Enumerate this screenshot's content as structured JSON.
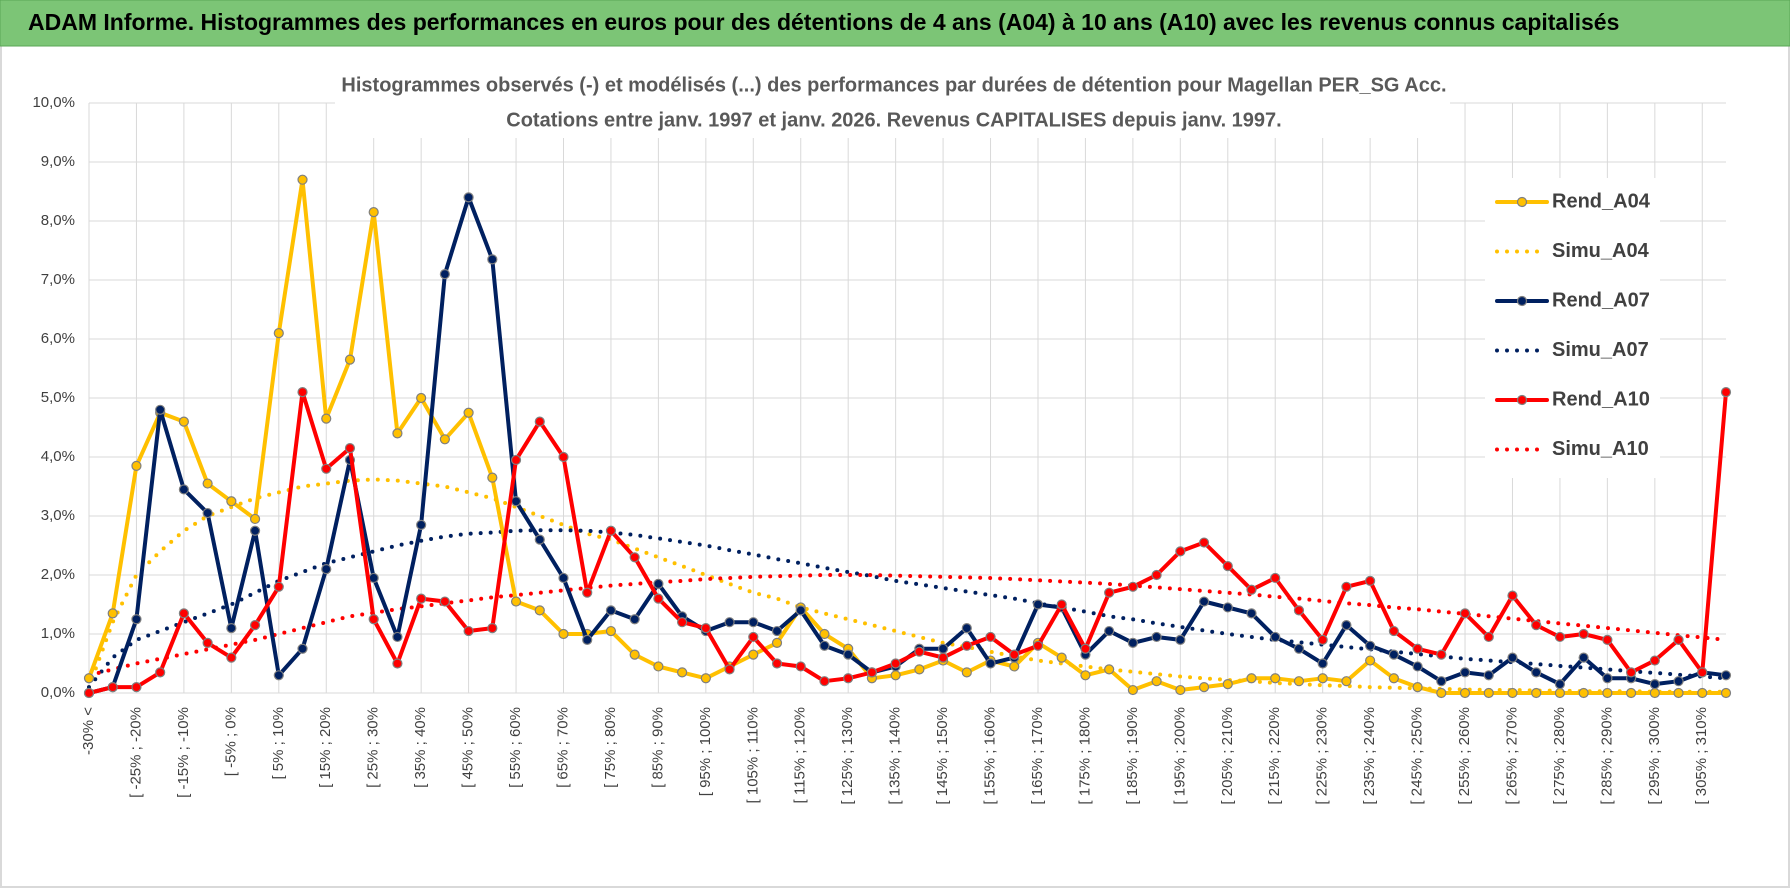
{
  "header": {
    "title": "ADAM Informe. Histogrammes des performances en euros pour des détentions de 4 ans (A04) à 10 ans (A10) avec les revenus connus capitalisés"
  },
  "chart_data": {
    "type": "line",
    "title": [
      "Histogrammes observés (-) et modélisés (...) des performances par durées de détention pour Magellan PER_SG Acc.",
      "Cotations entre janv. 1997 et janv. 2026. Revenus CAPITALISES depuis janv. 1997."
    ],
    "categories": [
      "-30% <",
      null,
      "[ -25% ; -20%",
      null,
      "[ -15% ; -10%",
      null,
      "[ -5% ; 0%",
      null,
      "[ 5% ; 10%",
      null,
      "[ 15% ; 20%",
      null,
      "[ 25% ; 30%",
      null,
      "[ 35% ; 40%",
      null,
      "[ 45% ; 50%",
      null,
      "[ 55% ; 60%",
      null,
      "[ 65% ; 70%",
      null,
      "[ 75% ; 80%",
      null,
      "[ 85% ; 90%",
      null,
      "[ 95% ; 100%",
      null,
      "[ 105% ; 110%",
      null,
      "[ 115% ; 120%",
      null,
      "[ 125% ; 130%",
      null,
      "[ 135% ; 140%",
      null,
      "[ 145% ; 150%",
      null,
      "[ 155% ; 160%",
      null,
      "[ 165% ; 170%",
      null,
      "[ 175% ; 180%",
      null,
      "[ 185% ; 190%",
      null,
      "[ 195% ; 200%",
      null,
      "[ 205% ; 210%",
      null,
      "[ 215% ; 220%",
      null,
      "[ 225% ; 230%",
      null,
      "[ 235% ; 240%",
      null,
      "[ 245% ; 250%",
      null,
      "[ 255% ; 260%",
      null,
      "[ 265% ; 270%",
      null,
      "[ 275% ; 280%",
      null,
      "[ 285% ; 290%",
      null,
      "[ 295% ; 300%",
      null,
      "[ 305% ; 310%",
      null
    ],
    "series": [
      {
        "name": "Rend_A04",
        "color": "#ffc000",
        "line_style": "solid",
        "values": [
          0.25,
          1.35,
          3.85,
          4.75,
          4.6,
          3.55,
          3.25,
          2.95,
          6.1,
          8.7,
          4.65,
          5.65,
          8.15,
          4.4,
          5.0,
          4.3,
          4.75,
          3.65,
          1.55,
          1.4,
          1.0,
          1.0,
          1.05,
          0.65,
          0.45,
          0.35,
          0.25,
          0.45,
          0.65,
          0.85,
          1.45,
          1.0,
          0.75,
          0.25,
          0.3,
          0.4,
          0.55,
          0.35,
          0.55,
          0.45,
          0.85,
          0.6,
          0.3,
          0.4,
          0.05,
          0.2,
          0.05,
          0.1,
          0.15,
          0.25,
          0.25,
          0.2,
          0.25,
          0.2,
          0.55,
          0.25,
          0.1,
          0,
          0,
          0,
          0,
          0,
          0,
          0,
          0,
          0,
          0,
          0,
          0,
          0
        ]
      },
      {
        "name": "Simu_A04",
        "color": "#ffc000",
        "line_style": "dotted",
        "values": [
          0.1,
          1.2,
          2.0,
          2.4,
          2.75,
          3.0,
          3.15,
          3.3,
          3.4,
          3.5,
          3.55,
          3.6,
          3.62,
          3.6,
          3.55,
          3.5,
          3.4,
          3.3,
          3.15,
          3.0,
          2.85,
          2.7,
          2.6,
          2.45,
          2.3,
          2.15,
          2.0,
          1.85,
          1.7,
          1.6,
          1.45,
          1.35,
          1.25,
          1.15,
          1.05,
          0.95,
          0.85,
          0.78,
          0.7,
          0.62,
          0.55,
          0.5,
          0.45,
          0.4,
          0.36,
          0.32,
          0.28,
          0.25,
          0.22,
          0.2,
          0.17,
          0.15,
          0.13,
          0.12,
          0.1,
          0.09,
          0.08,
          0.07,
          0.06,
          0.05,
          0.05,
          0.04,
          0.04,
          0.03,
          0.03,
          0.03,
          0.02,
          0.02,
          0.02,
          0.02
        ]
      },
      {
        "name": "Rend_A07",
        "color": "#002060",
        "line_style": "solid",
        "values": [
          0,
          0.1,
          1.25,
          4.8,
          3.45,
          3.05,
          1.1,
          2.75,
          0.3,
          0.75,
          2.1,
          3.95,
          1.95,
          0.95,
          2.85,
          7.1,
          8.4,
          7.35,
          3.25,
          2.6,
          1.95,
          0.9,
          1.4,
          1.25,
          1.85,
          1.3,
          1.05,
          1.2,
          1.2,
          1.05,
          1.4,
          0.8,
          0.65,
          0.35,
          0.45,
          0.75,
          0.75,
          1.1,
          0.5,
          0.6,
          1.5,
          1.45,
          0.65,
          1.05,
          0.85,
          0.95,
          0.9,
          1.55,
          1.45,
          1.35,
          0.95,
          0.75,
          0.5,
          1.15,
          0.8,
          0.65,
          0.45,
          0.2,
          0.35,
          0.3,
          0.6,
          0.35,
          0.15,
          0.6,
          0.25,
          0.25,
          0.15,
          0.2,
          0.35,
          0.3
        ]
      },
      {
        "name": "Simu_A07",
        "color": "#002060",
        "line_style": "dotted",
        "values": [
          0.1,
          0.6,
          0.9,
          1.05,
          1.2,
          1.35,
          1.5,
          1.7,
          1.9,
          2.05,
          2.2,
          2.3,
          2.4,
          2.5,
          2.58,
          2.65,
          2.7,
          2.72,
          2.75,
          2.76,
          2.76,
          2.75,
          2.72,
          2.68,
          2.62,
          2.56,
          2.5,
          2.42,
          2.35,
          2.27,
          2.2,
          2.12,
          2.05,
          1.98,
          1.9,
          1.84,
          1.78,
          1.72,
          1.66,
          1.6,
          1.52,
          1.45,
          1.38,
          1.3,
          1.25,
          1.18,
          1.12,
          1.06,
          1.0,
          0.95,
          0.9,
          0.86,
          0.82,
          0.78,
          0.74,
          0.7,
          0.66,
          0.62,
          0.58,
          0.55,
          0.52,
          0.49,
          0.46,
          0.43,
          0.4,
          0.37,
          0.34,
          0.31,
          0.28,
          0.25
        ]
      },
      {
        "name": "Rend_A10",
        "color": "#ff0000",
        "line_style": "solid",
        "values": [
          0,
          0.1,
          0.1,
          0.35,
          1.35,
          0.85,
          0.6,
          1.15,
          1.8,
          5.1,
          3.8,
          4.15,
          1.25,
          0.5,
          1.6,
          1.55,
          1.05,
          1.1,
          3.95,
          4.6,
          4.0,
          1.7,
          2.75,
          2.3,
          1.6,
          1.2,
          1.1,
          0.4,
          0.95,
          0.5,
          0.45,
          0.2,
          0.25,
          0.35,
          0.5,
          0.7,
          0.6,
          0.8,
          0.95,
          0.65,
          0.8,
          1.5,
          0.75,
          1.7,
          1.8,
          2.0,
          2.4,
          2.55,
          2.15,
          1.75,
          1.95,
          1.4,
          0.9,
          1.8,
          1.9,
          1.05,
          0.75,
          0.65,
          1.35,
          0.95,
          1.65,
          1.15,
          0.95,
          1.0,
          0.9,
          0.35,
          0.55,
          0.9,
          0.35,
          5.1
        ]
      },
      {
        "name": "Simu_A10",
        "color": "#ff0000",
        "line_style": "dotted",
        "values": [
          0.3,
          0.4,
          0.5,
          0.58,
          0.66,
          0.74,
          0.82,
          0.9,
          1.0,
          1.1,
          1.2,
          1.3,
          1.36,
          1.42,
          1.47,
          1.52,
          1.57,
          1.62,
          1.66,
          1.7,
          1.74,
          1.78,
          1.82,
          1.85,
          1.88,
          1.9,
          1.93,
          1.95,
          1.97,
          1.98,
          1.99,
          2.0,
          2.0,
          2.0,
          1.99,
          1.98,
          1.97,
          1.96,
          1.95,
          1.93,
          1.91,
          1.89,
          1.87,
          1.85,
          1.82,
          1.79,
          1.76,
          1.73,
          1.7,
          1.67,
          1.63,
          1.6,
          1.56,
          1.52,
          1.49,
          1.45,
          1.42,
          1.38,
          1.34,
          1.3,
          1.26,
          1.22,
          1.18,
          1.14,
          1.1,
          1.06,
          1.02,
          0.98,
          0.94,
          0.9
        ]
      }
    ],
    "ylim": [
      0,
      10
    ],
    "yticks": [
      {
        "value": 0,
        "label": "0,0%"
      },
      {
        "value": 1,
        "label": "1,0%"
      },
      {
        "value": 2,
        "label": "2,0%"
      },
      {
        "value": 3,
        "label": "3,0%"
      },
      {
        "value": 4,
        "label": "4,0%"
      },
      {
        "value": 5,
        "label": "5,0%"
      },
      {
        "value": 6,
        "label": "6,0%"
      },
      {
        "value": 7,
        "label": "7,0%"
      },
      {
        "value": 8,
        "label": "8,0%"
      },
      {
        "value": 9,
        "label": "9,0%"
      },
      {
        "value": 10,
        "label": "10,0%"
      }
    ],
    "grid": true,
    "markers": true,
    "legend": "right"
  }
}
